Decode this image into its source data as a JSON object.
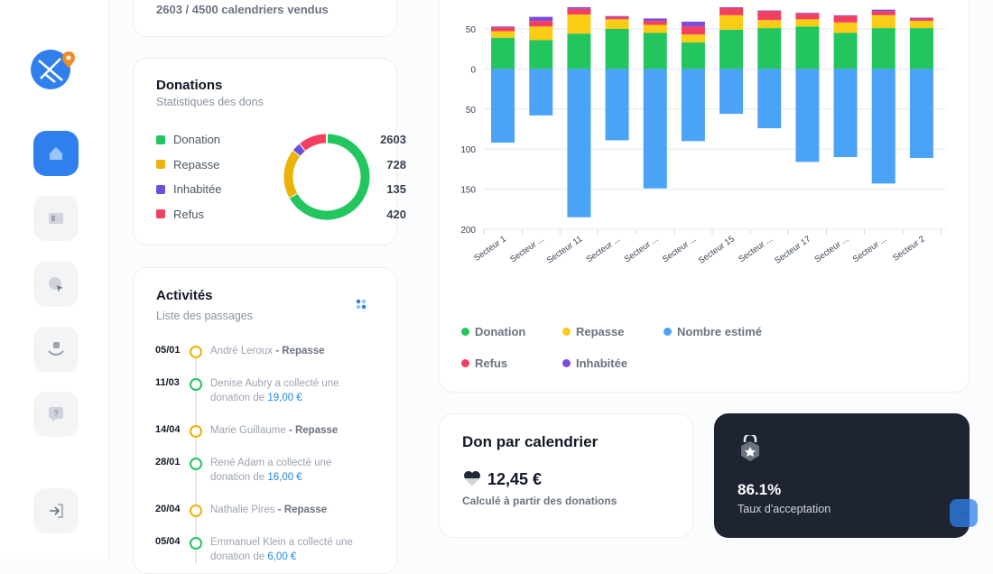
{
  "sales_card": {
    "text": "2603 / 4500 calendriers vendus"
  },
  "donations_card": {
    "title": "Donations",
    "subtitle": "Statistiques des dons"
  },
  "activities": {
    "title": "Activités",
    "subtitle": "Liste des passages",
    "items": [
      {
        "date": "05/01",
        "text": "André Leroux",
        "highlight": "- Repasse",
        "marker_color": "#eab308",
        "highlight_color": "#6b7280"
      },
      {
        "date": "11/03",
        "text": "Denise Aubry a collecté une donation de",
        "highlight": "19,00 €",
        "marker_color": "#22c55e",
        "highlight_color": "#1e88e5"
      },
      {
        "date": "14/04",
        "text": "Marie Guillaume",
        "highlight": "- Repasse",
        "marker_color": "#eab308",
        "highlight_color": "#6b7280"
      },
      {
        "date": "28/01",
        "text": "René Adam a collecté une donation de",
        "highlight": "16,00 €",
        "marker_color": "#22c55e",
        "highlight_color": "#1e88e5"
      },
      {
        "date": "20/04",
        "text": "Nathalie Pires",
        "highlight": "- Repasse",
        "marker_color": "#eab308",
        "highlight_color": "#6b7280"
      },
      {
        "date": "05/04",
        "text": "Emmanuel Klein a collecté une donation de",
        "highlight": "6,00 €",
        "marker_color": "#22c55e",
        "highlight_color": "#1e88e5"
      }
    ]
  },
  "don_card": {
    "title": "Don par calendrier",
    "value": "12,45 €",
    "caption": "Calculé à partir des donations"
  },
  "acceptance_card": {
    "value": "86.1%",
    "caption": "Taux d'acceptation"
  },
  "chart_data": [
    {
      "type": "donut",
      "categories": [
        "Donation",
        "Repasse",
        "Inhabitée",
        "Refus"
      ],
      "values": [
        2603,
        728,
        135,
        420
      ],
      "colors": [
        "#22c55e",
        "#eab308",
        "#6d4fe0",
        "#f43f5e"
      ]
    },
    {
      "type": "bar",
      "stacked": true,
      "grid": true,
      "categories": [
        "Secteur 1",
        "Secteur ...",
        "Secteur 11",
        "Secteur ...",
        "Secteur ...",
        "Secteur ...",
        "Secteur 15",
        "Secteur ...",
        "Secteur 17",
        "Secteur ...",
        "Secteur ...",
        "Secteur 2"
      ],
      "series": [
        {
          "name": "Donation",
          "color": "#22c55e",
          "values": [
            39,
            36,
            44,
            50,
            45,
            33,
            49,
            51,
            53,
            45,
            51,
            51
          ]
        },
        {
          "name": "Repasse",
          "color": "#facc15",
          "values": [
            8,
            17,
            24,
            12,
            10,
            10,
            18,
            10,
            9,
            13,
            16,
            9
          ]
        },
        {
          "name": "Nombre estimé",
          "color": "#4aa3f7",
          "values": [
            -92,
            -58,
            -185,
            -89,
            -149,
            -90,
            -56,
            -74,
            -116,
            -110,
            -143,
            -111
          ]
        },
        {
          "name": "Refus",
          "color": "#f43f5e",
          "values": [
            5,
            7,
            7,
            3,
            5,
            10,
            9,
            11,
            7,
            8,
            5,
            3
          ]
        },
        {
          "name": "Inhabitée",
          "color": "#7c4ddc",
          "values": [
            1,
            5,
            2,
            1,
            3,
            6,
            1,
            1,
            1,
            1,
            2,
            1
          ]
        }
      ],
      "ylim": [
        -200,
        86
      ],
      "yticks": [
        50,
        0,
        {
          "value": -50,
          "label": "50"
        },
        {
          "value": -100,
          "label": "100"
        },
        {
          "value": -150,
          "label": "150"
        },
        {
          "value": -200,
          "label": "200"
        }
      ]
    }
  ]
}
